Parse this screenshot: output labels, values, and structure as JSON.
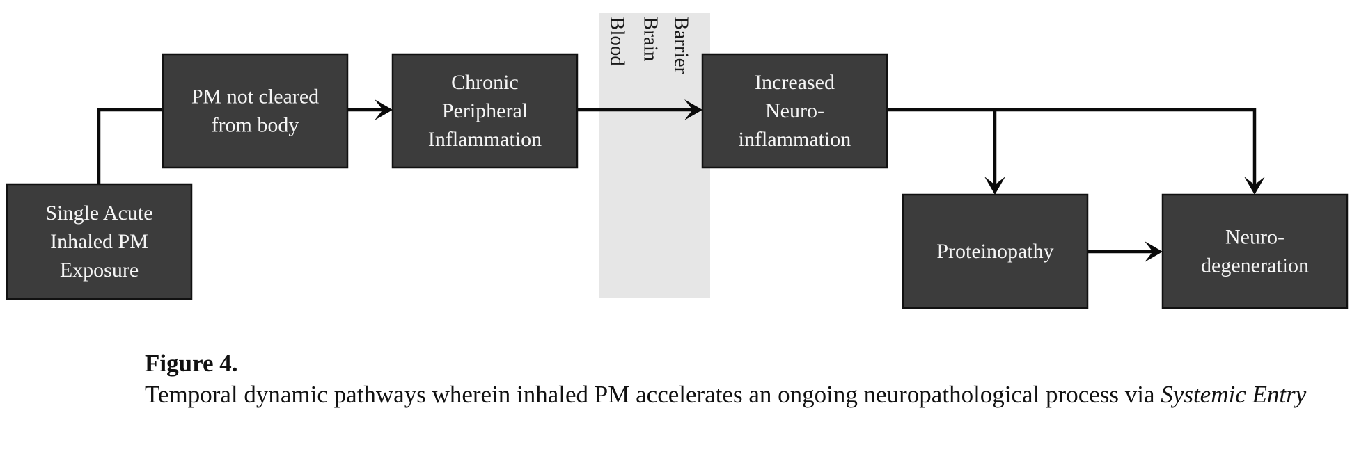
{
  "diagram": {
    "colors": {
      "node_fill": "#3c3c3c",
      "node_text": "#f5f5f5",
      "barrier_band": "#e6e6e6",
      "edge": "#0a0a0a"
    },
    "barrier_label": [
      "Blood",
      "Brain",
      "Barrier"
    ],
    "nodes": [
      {
        "id": "single-acute-exposure",
        "lines": [
          "Single Acute",
          "Inhaled PM",
          "Exposure"
        ]
      },
      {
        "id": "pm-not-cleared",
        "lines": [
          "PM not cleared",
          "from body"
        ]
      },
      {
        "id": "chronic-peripheral-inflammation",
        "lines": [
          "Chronic",
          "Peripheral",
          "Inflammation"
        ]
      },
      {
        "id": "increased-neuroinflammation",
        "lines": [
          "Increased",
          "Neuro-",
          "inflammation"
        ]
      },
      {
        "id": "proteinopathy",
        "lines": [
          "Proteinopathy"
        ]
      },
      {
        "id": "neurodegeneration",
        "lines": [
          "Neuro-",
          "degeneration"
        ]
      }
    ],
    "edges": [
      {
        "from": "single-acute-exposure",
        "to": "pm-not-cleared",
        "arrow": false
      },
      {
        "from": "pm-not-cleared",
        "to": "chronic-peripheral-inflammation",
        "arrow": true
      },
      {
        "from": "chronic-peripheral-inflammation",
        "to": "increased-neuroinflammation",
        "arrow": true
      },
      {
        "from": "increased-neuroinflammation",
        "to": "proteinopathy",
        "arrow": true
      },
      {
        "from": "increased-neuroinflammation",
        "to": "neurodegeneration",
        "arrow": true
      },
      {
        "from": "proteinopathy",
        "to": "neurodegeneration",
        "arrow": true
      }
    ]
  },
  "caption": {
    "label": "Figure 4.",
    "text": "Temporal dynamic pathways wherein inhaled PM accelerates an ongoing neuropathological process via ",
    "emphasis": "Systemic Entry"
  }
}
